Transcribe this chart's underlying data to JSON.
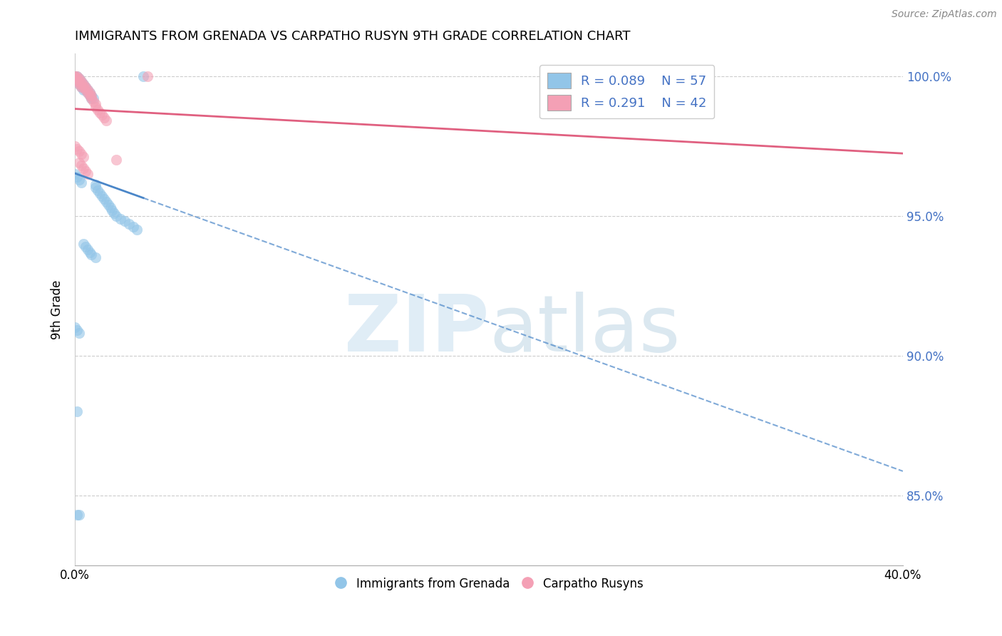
{
  "title": "IMMIGRANTS FROM GRENADA VS CARPATHO RUSYN 9TH GRADE CORRELATION CHART",
  "source": "Source: ZipAtlas.com",
  "ylabel": "9th Grade",
  "x_min": 0.0,
  "x_max": 0.4,
  "y_min": 0.825,
  "y_max": 1.008,
  "yticks": [
    0.85,
    0.9,
    0.95,
    1.0
  ],
  "ytick_labels": [
    "85.0%",
    "90.0%",
    "95.0%",
    "100.0%"
  ],
  "legend_r1": "R = 0.089",
  "legend_n1": "N = 57",
  "legend_r2": "R = 0.291",
  "legend_n2": "N = 42",
  "blue_color": "#92C5E8",
  "pink_color": "#F4A0B5",
  "trend_blue_color": "#4A86C8",
  "trend_pink_color": "#E06080",
  "blue_x": [
    0.0,
    0.0,
    0.001,
    0.001,
    0.001,
    0.002,
    0.002,
    0.002,
    0.003,
    0.003,
    0.003,
    0.004,
    0.004,
    0.004,
    0.005,
    0.005,
    0.006,
    0.006,
    0.007,
    0.007,
    0.008,
    0.008,
    0.009,
    0.01,
    0.01,
    0.011,
    0.012,
    0.013,
    0.014,
    0.015,
    0.016,
    0.017,
    0.018,
    0.019,
    0.02,
    0.022,
    0.024,
    0.026,
    0.028,
    0.03,
    0.0,
    0.001,
    0.002,
    0.003,
    0.004,
    0.005,
    0.006,
    0.007,
    0.008,
    0.01,
    0.0,
    0.001,
    0.002,
    0.001,
    0.033,
    0.002,
    0.001
  ],
  "blue_y": [
    1.0,
    0.999,
    1.0,
    0.999,
    0.998,
    0.999,
    0.998,
    0.997,
    0.998,
    0.997,
    0.996,
    0.997,
    0.996,
    0.995,
    0.996,
    0.995,
    0.995,
    0.994,
    0.994,
    0.993,
    0.993,
    0.992,
    0.992,
    0.961,
    0.96,
    0.959,
    0.958,
    0.957,
    0.956,
    0.955,
    0.954,
    0.953,
    0.952,
    0.951,
    0.95,
    0.949,
    0.948,
    0.947,
    0.946,
    0.945,
    0.965,
    0.964,
    0.963,
    0.962,
    0.94,
    0.939,
    0.938,
    0.937,
    0.936,
    0.935,
    0.91,
    0.909,
    0.908,
    0.88,
    1.0,
    0.843,
    0.843
  ],
  "pink_x": [
    0.0,
    0.0,
    0.0,
    0.001,
    0.001,
    0.001,
    0.002,
    0.002,
    0.002,
    0.003,
    0.003,
    0.003,
    0.004,
    0.004,
    0.005,
    0.005,
    0.006,
    0.006,
    0.007,
    0.007,
    0.008,
    0.008,
    0.009,
    0.01,
    0.01,
    0.011,
    0.012,
    0.013,
    0.014,
    0.015,
    0.0,
    0.001,
    0.002,
    0.003,
    0.004,
    0.02,
    0.035,
    0.002,
    0.003,
    0.004,
    0.005,
    0.006
  ],
  "pink_y": [
    1.0,
    1.0,
    0.999,
    1.0,
    0.999,
    0.998,
    0.999,
    0.998,
    0.997,
    0.998,
    0.997,
    0.996,
    0.997,
    0.996,
    0.996,
    0.995,
    0.995,
    0.994,
    0.994,
    0.993,
    0.993,
    0.992,
    0.991,
    0.99,
    0.989,
    0.988,
    0.987,
    0.986,
    0.985,
    0.984,
    0.975,
    0.974,
    0.973,
    0.972,
    0.971,
    0.97,
    1.0,
    0.969,
    0.968,
    0.967,
    0.966,
    0.965
  ]
}
